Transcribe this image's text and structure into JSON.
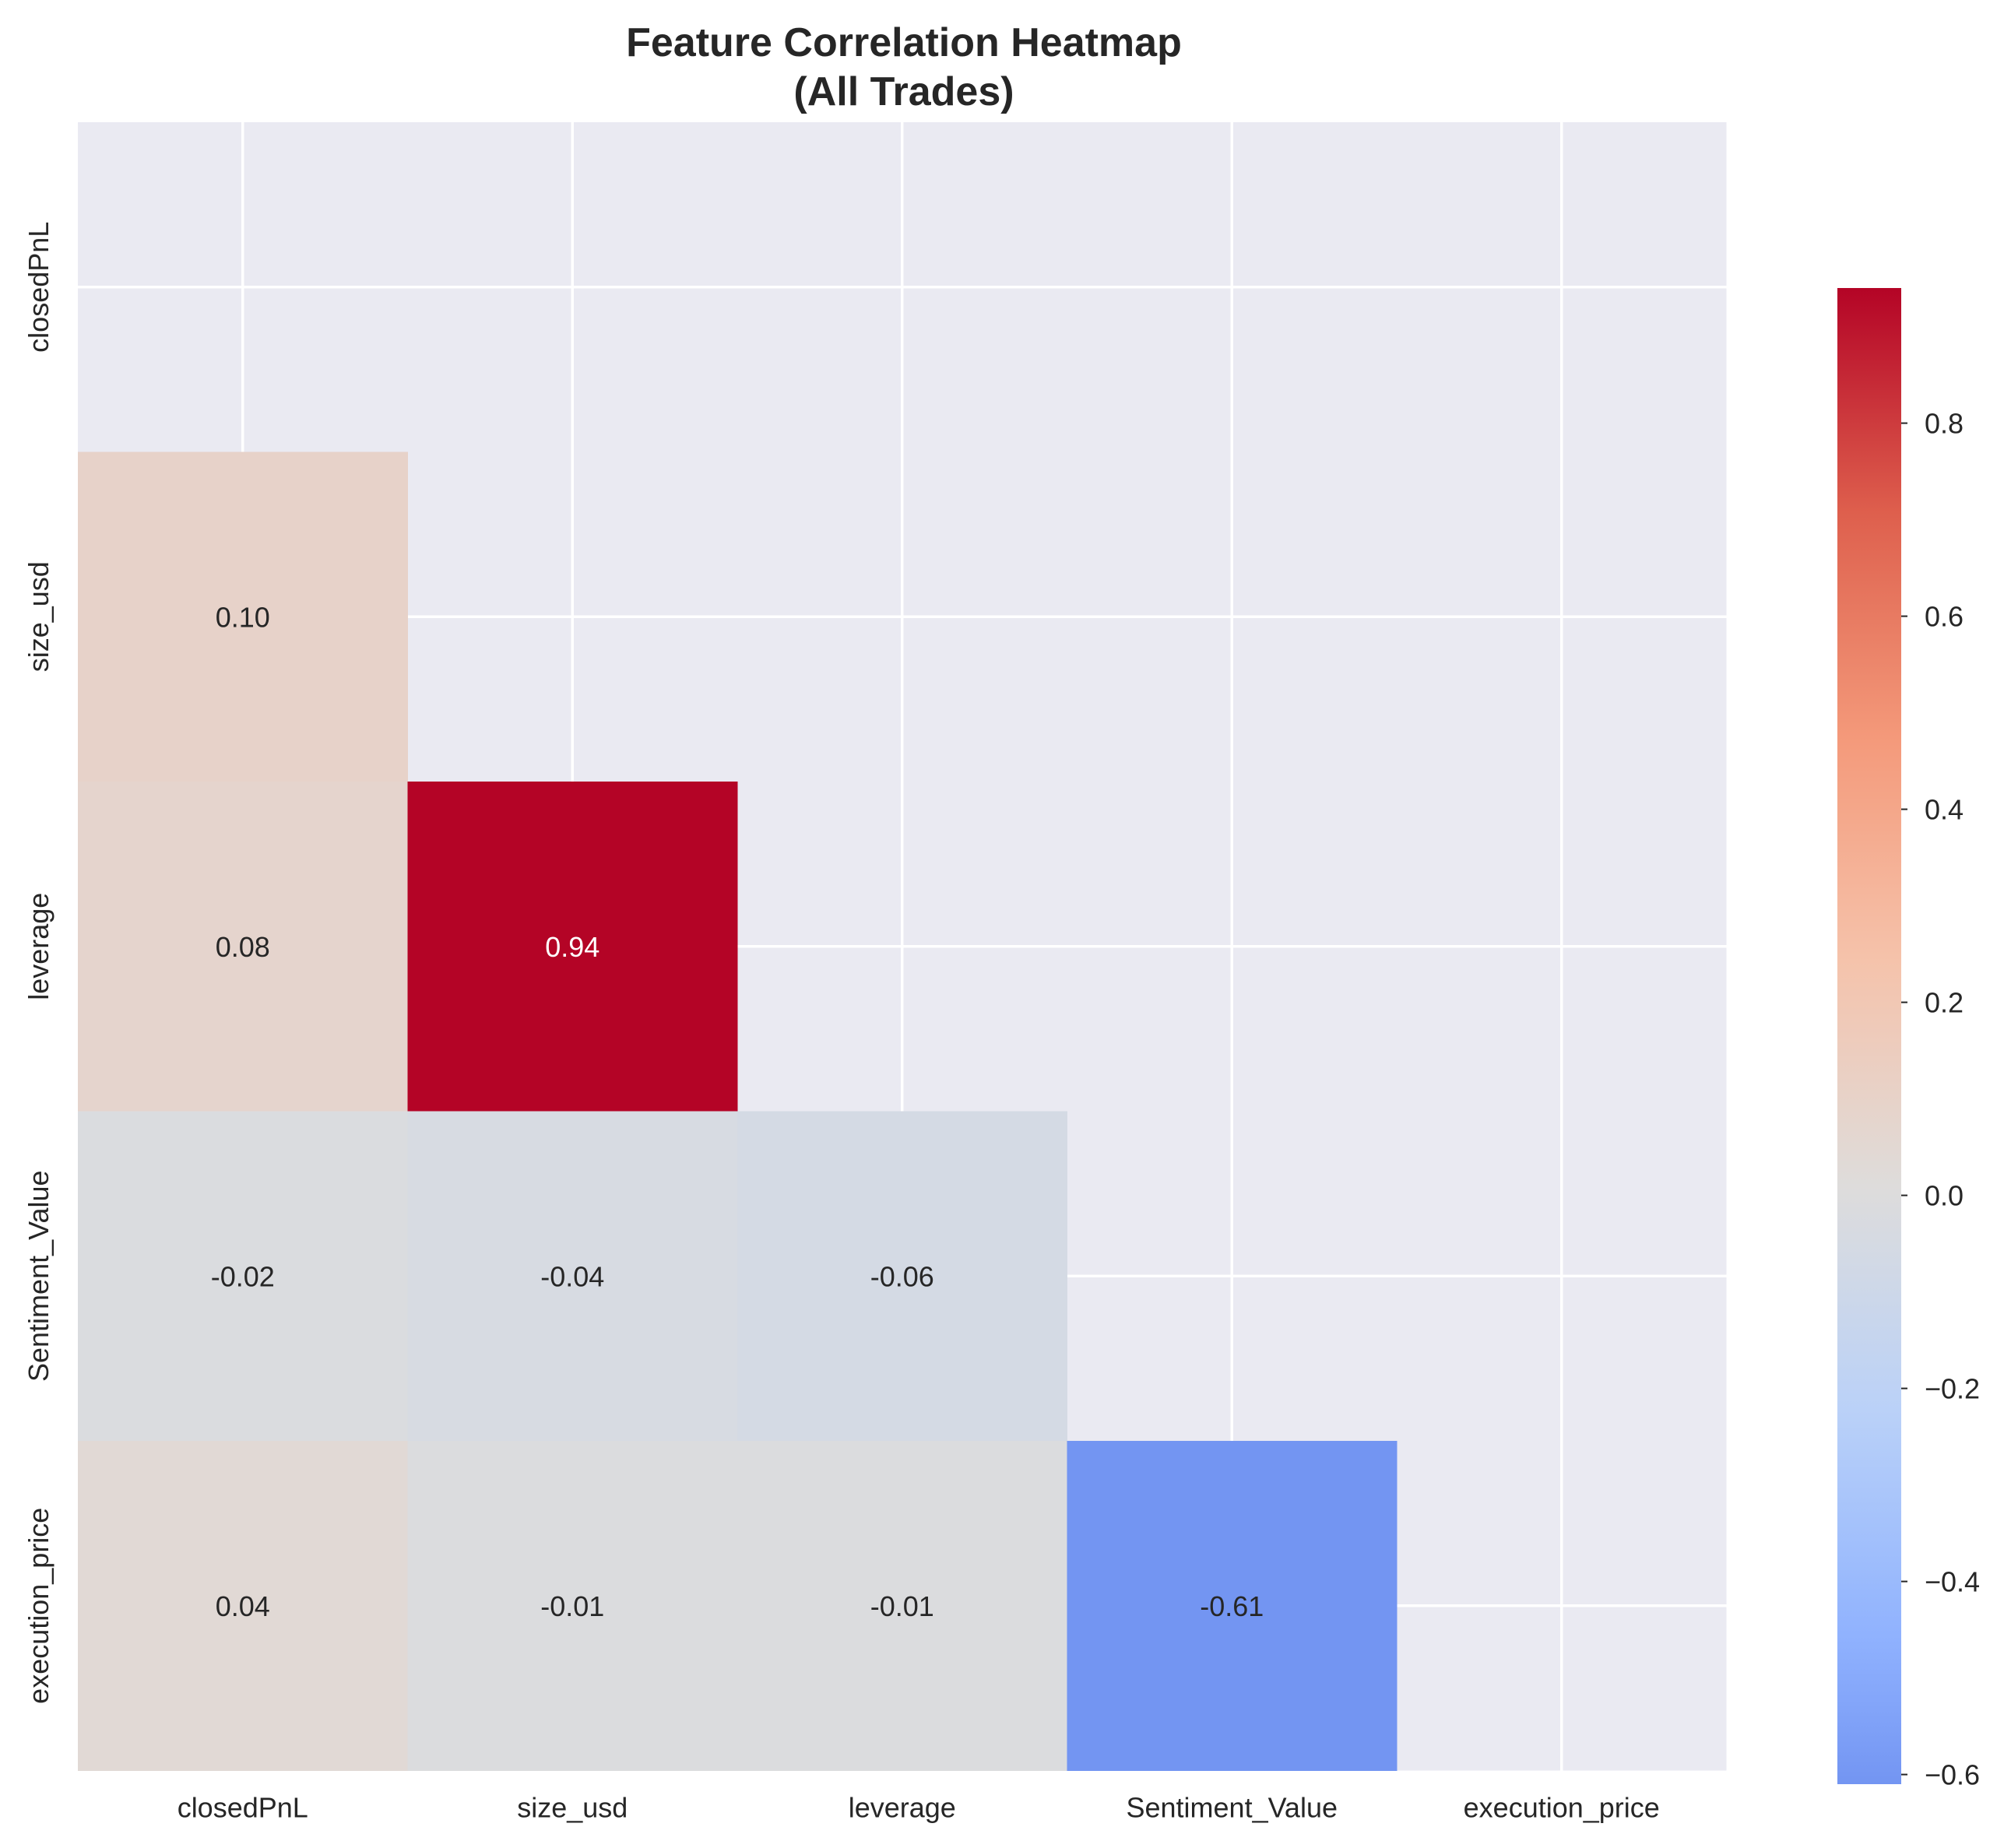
{
  "chart_data": {
    "type": "heatmap",
    "title_line1": "Feature Correlation Heatmap",
    "title_line2": "(All Trades)",
    "variables": [
      "closedPnL",
      "size_usd",
      "leverage",
      "Sentiment_Value",
      "execution_price"
    ],
    "mask": "upper-triangle-including-diagonal",
    "values": [
      [
        null,
        null,
        null,
        null,
        null
      ],
      [
        0.1,
        null,
        null,
        null,
        null
      ],
      [
        0.08,
        0.94,
        null,
        null,
        null
      ],
      [
        -0.02,
        -0.04,
        -0.06,
        null,
        null
      ],
      [
        0.04,
        -0.01,
        -0.01,
        -0.61,
        null
      ]
    ],
    "value_labels": [
      [
        null,
        null,
        null,
        null,
        null
      ],
      [
        "0.10",
        null,
        null,
        null,
        null
      ],
      [
        "0.08",
        "0.94",
        null,
        null,
        null
      ],
      [
        "-0.02",
        "-0.04",
        "-0.06",
        null,
        null
      ],
      [
        "0.04",
        "-0.01",
        "-0.01",
        "-0.61",
        null
      ]
    ],
    "colorscale": "coolwarm",
    "colorbar": {
      "vmin": -0.61,
      "vmax": 0.94,
      "ticks": [
        0.8,
        0.6,
        0.4,
        0.2,
        0.0,
        -0.2,
        -0.4,
        -0.6
      ],
      "tick_labels": [
        "0.8",
        "0.6",
        "0.4",
        "0.2",
        "0.0",
        "−0.2",
        "−0.4",
        "−0.6"
      ]
    },
    "grid": true,
    "background_color": "#eaeaf2"
  }
}
